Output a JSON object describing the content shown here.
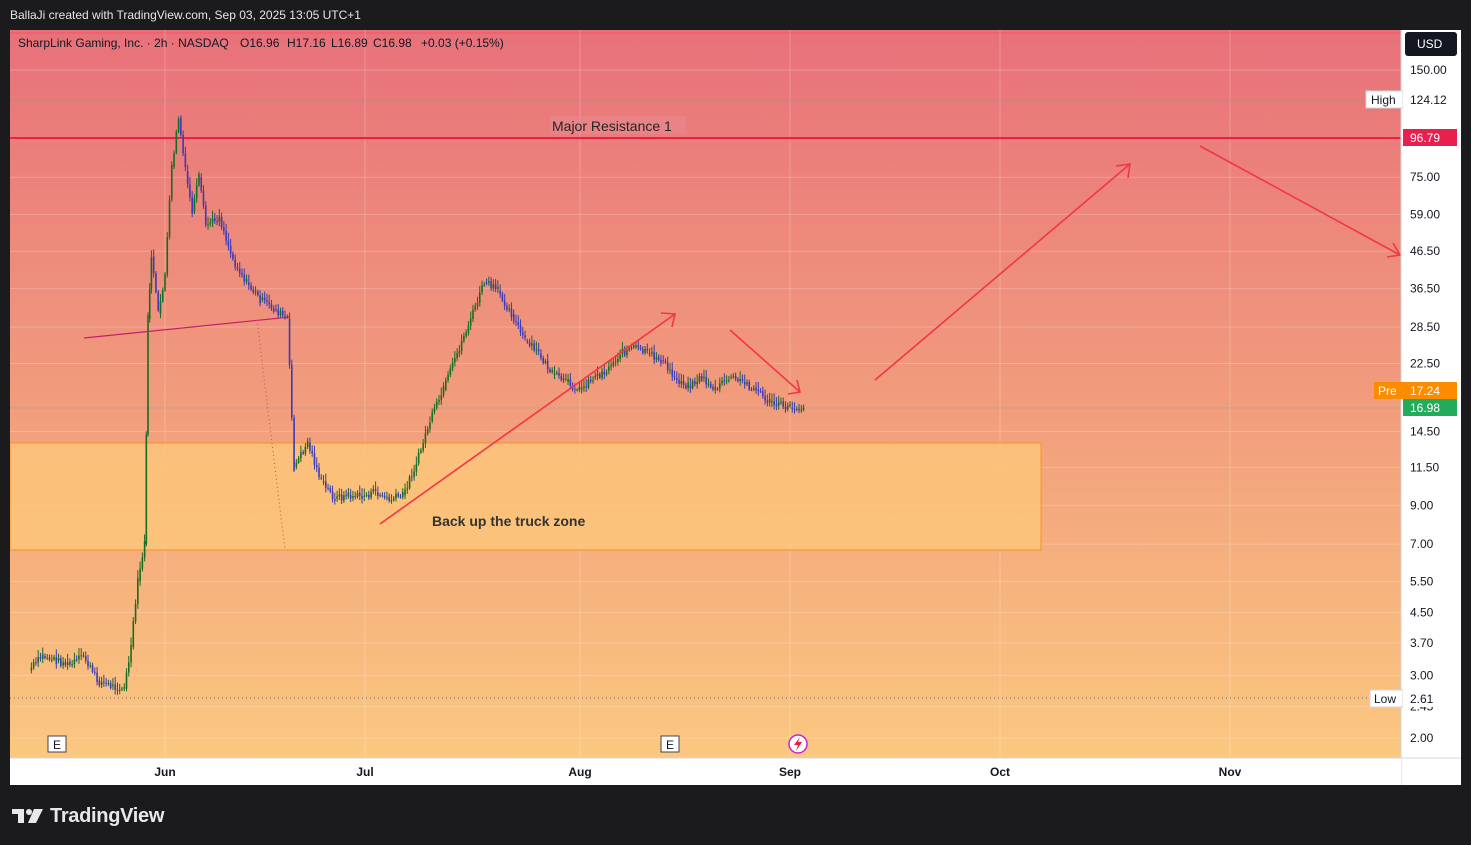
{
  "header": {
    "credit": "BallaJi created with TradingView.com, Sep 03, 2025 13:05 UTC+1"
  },
  "legend": {
    "symbol": "SharpLink Gaming, Inc. · 2h · NASDAQ",
    "open": "O16.96",
    "high": "H17.16",
    "low": "L16.89",
    "close": "C16.98",
    "change": "+0.03 (+0.15%)"
  },
  "currency": "USD",
  "price_labels": {
    "high_tag": "High",
    "high_value": "124.12",
    "resistance_value": "96.79",
    "pre_tag": "Pre",
    "pre_value": "17.24",
    "last_value": "16.98",
    "low_tag": "Low",
    "low_value": "2.61"
  },
  "annotations": {
    "resistance": "Major Resistance 1",
    "zone": "Back up the truck zone"
  },
  "events": {
    "earnings_marker": "E",
    "earnings_marker_2": "E"
  },
  "footer": {
    "brand": "TradingView"
  },
  "colors": {
    "bg_top": "#e8717a",
    "bg_bottom": "#fbc57f",
    "zone_fill": "#fbc57a",
    "zone_border": "#f7931e",
    "resistance_line": "#e8204e",
    "arrow": "#f23645",
    "candle_up": "#1a6b22",
    "candle_down": "#3d3ab5",
    "pre_badge": "#fb8c00",
    "last_badge": "#22ab5b"
  },
  "chart_data": {
    "type": "candlestick",
    "scale": "log",
    "y_ticks": [
      150.0,
      75.0,
      59.0,
      46.5,
      36.5,
      28.5,
      22.5,
      14.5,
      11.5,
      9.0,
      7.0,
      5.5,
      4.5,
      3.7,
      3.0,
      2.45,
      2.0
    ],
    "y_tick_labels": [
      "150.00",
      "75.00",
      "59.00",
      "46.50",
      "36.50",
      "28.50",
      "22.50",
      "14.50",
      "11.50",
      "9.00",
      "7.00",
      "5.50",
      "4.50",
      "3.70",
      "3.00",
      "2.45",
      "2.00"
    ],
    "x_tick_labels": [
      "Jun",
      "Jul",
      "Aug",
      "Sep",
      "Oct",
      "Nov"
    ],
    "price_path": [
      [
        "2025-05-12",
        3.1
      ],
      [
        "2025-05-14",
        3.4
      ],
      [
        "2025-05-16",
        3.3
      ],
      [
        "2025-05-18",
        3.2
      ],
      [
        "2025-05-20",
        3.4
      ],
      [
        "2025-05-22",
        2.9
      ],
      [
        "2025-05-24",
        2.8
      ],
      [
        "2025-05-26",
        2.75
      ],
      [
        "2025-05-27",
        3.6
      ],
      [
        "2025-05-28",
        5.5
      ],
      [
        "2025-05-29",
        7.0
      ],
      [
        "2025-05-29T12",
        30
      ],
      [
        "2025-05-30",
        45
      ],
      [
        "2025-05-31",
        31
      ],
      [
        "2025-06-01",
        40
      ],
      [
        "2025-06-02",
        80
      ],
      [
        "2025-06-03",
        110
      ],
      [
        "2025-06-04",
        78
      ],
      [
        "2025-06-05",
        60
      ],
      [
        "2025-06-06",
        75
      ],
      [
        "2025-06-07",
        55
      ],
      [
        "2025-06-09",
        58
      ],
      [
        "2025-06-11",
        44
      ],
      [
        "2025-06-13",
        38
      ],
      [
        "2025-06-15",
        34
      ],
      [
        "2025-06-17",
        32
      ],
      [
        "2025-06-19",
        30
      ],
      [
        "2025-06-20",
        11.5
      ],
      [
        "2025-06-22",
        13.5
      ],
      [
        "2025-06-24",
        10.5
      ],
      [
        "2025-06-26",
        9.4
      ],
      [
        "2025-06-28",
        9.6
      ],
      [
        "2025-06-30",
        9.5
      ],
      [
        "2025-07-02",
        9.8
      ],
      [
        "2025-07-04",
        9.3
      ],
      [
        "2025-07-06",
        9.6
      ],
      [
        "2025-07-08",
        11.8
      ],
      [
        "2025-07-10",
        15.5
      ],
      [
        "2025-07-12",
        19
      ],
      [
        "2025-07-14",
        24
      ],
      [
        "2025-07-16",
        30
      ],
      [
        "2025-07-18",
        38
      ],
      [
        "2025-07-20",
        36
      ],
      [
        "2025-07-22",
        31
      ],
      [
        "2025-07-24",
        26
      ],
      [
        "2025-07-26",
        24
      ],
      [
        "2025-07-28",
        21
      ],
      [
        "2025-07-30",
        20
      ],
      [
        "2025-08-01",
        19
      ],
      [
        "2025-08-03",
        20.5
      ],
      [
        "2025-08-05",
        21.5
      ],
      [
        "2025-08-07",
        24
      ],
      [
        "2025-08-09",
        25
      ],
      [
        "2025-08-11",
        24
      ],
      [
        "2025-08-13",
        23
      ],
      [
        "2025-08-15",
        20.5
      ],
      [
        "2025-08-17",
        19.5
      ],
      [
        "2025-08-19",
        20.5
      ],
      [
        "2025-08-21",
        19
      ],
      [
        "2025-08-23",
        20.5
      ],
      [
        "2025-08-25",
        20
      ],
      [
        "2025-08-27",
        19
      ],
      [
        "2025-08-29",
        17.5
      ],
      [
        "2025-09-01",
        16.9
      ],
      [
        "2025-09-03",
        16.98
      ]
    ]
  }
}
